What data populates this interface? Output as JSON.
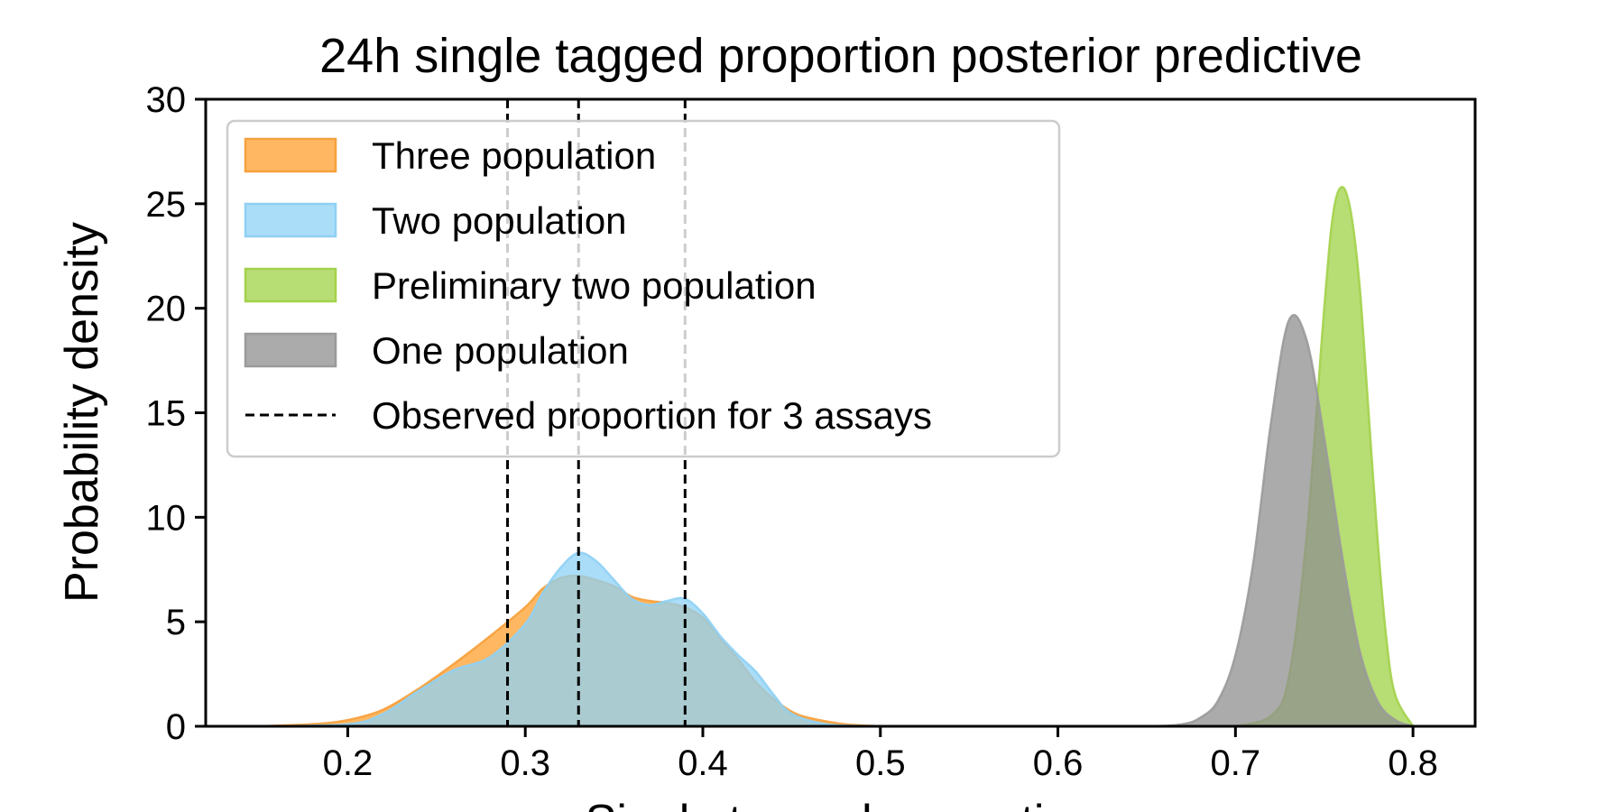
{
  "chart_data": {
    "type": "area",
    "title": "24h single tagged proportion posterior predictive",
    "xlabel": "Single tagged proportion",
    "ylabel": "Probability density",
    "xlim": [
      0.12,
      0.835
    ],
    "ylim": [
      0,
      30
    ],
    "xticks": [
      0.2,
      0.3,
      0.4,
      0.5,
      0.6,
      0.7,
      0.8
    ],
    "yticks": [
      0,
      5,
      10,
      15,
      20,
      25,
      30
    ],
    "grid": false,
    "legend_position": "upper-left",
    "series": [
      {
        "name": "Three population",
        "color": "#ff9f2e",
        "edge_color": "#f5a03c",
        "x": [
          0.15,
          0.18,
          0.2,
          0.22,
          0.24,
          0.26,
          0.28,
          0.3,
          0.31,
          0.32,
          0.33,
          0.34,
          0.35,
          0.36,
          0.37,
          0.38,
          0.39,
          0.4,
          0.41,
          0.42,
          0.43,
          0.44,
          0.45,
          0.46,
          0.48,
          0.5
        ],
        "y": [
          0.0,
          0.1,
          0.3,
          0.8,
          1.8,
          3.0,
          4.3,
          5.7,
          6.6,
          7.1,
          7.2,
          7.0,
          6.7,
          6.2,
          6.0,
          5.9,
          5.7,
          5.2,
          4.2,
          3.2,
          2.1,
          1.3,
          0.7,
          0.4,
          0.1,
          0.0
        ]
      },
      {
        "name": "Two population",
        "color": "#8ed1f5",
        "edge_color": "#8fd0f4",
        "x": [
          0.15,
          0.2,
          0.22,
          0.24,
          0.26,
          0.28,
          0.3,
          0.31,
          0.32,
          0.33,
          0.34,
          0.35,
          0.36,
          0.37,
          0.38,
          0.39,
          0.4,
          0.41,
          0.42,
          0.43,
          0.44,
          0.45,
          0.47,
          0.5
        ],
        "y": [
          0.0,
          0.1,
          0.6,
          1.7,
          2.7,
          3.3,
          4.9,
          6.4,
          7.6,
          8.3,
          7.9,
          7.0,
          6.1,
          5.8,
          6.0,
          6.1,
          5.4,
          4.3,
          3.4,
          2.6,
          1.5,
          0.6,
          0.1,
          0.0
        ]
      },
      {
        "name": "Preliminary two population",
        "color": "#9fd147",
        "edge_color": "#a3d24a",
        "x": [
          0.7,
          0.72,
          0.73,
          0.74,
          0.75,
          0.755,
          0.76,
          0.765,
          0.77,
          0.775,
          0.78,
          0.785,
          0.79,
          0.8
        ],
        "y": [
          0.0,
          0.5,
          2.3,
          9.0,
          20.0,
          24.5,
          25.8,
          24.6,
          21.0,
          15.0,
          9.0,
          4.2,
          1.5,
          0.0
        ]
      },
      {
        "name": "One population",
        "color": "#8f8f8f",
        "edge_color": "#9a9a9a",
        "x": [
          0.6,
          0.65,
          0.67,
          0.68,
          0.69,
          0.7,
          0.71,
          0.72,
          0.73,
          0.74,
          0.75,
          0.76,
          0.77,
          0.78,
          0.79,
          0.8
        ],
        "y": [
          0.0,
          0.0,
          0.1,
          0.4,
          1.2,
          3.4,
          7.8,
          14.5,
          19.4,
          18.5,
          13.8,
          8.2,
          3.6,
          1.2,
          0.3,
          0.0
        ]
      }
    ],
    "vlines": {
      "name": "Observed proportion for 3 assays",
      "x": [
        0.29,
        0.33,
        0.39
      ],
      "style": "dashed",
      "color": "#000000"
    }
  }
}
